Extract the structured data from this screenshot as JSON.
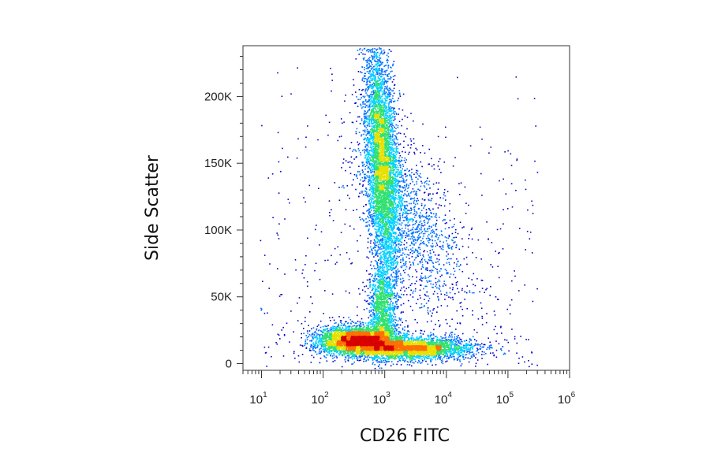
{
  "chart_data": {
    "type": "scatter",
    "subtype": "flow-cytometry density plot",
    "xlabel": "CD26 FITC",
    "ylabel": "Side Scatter",
    "x_scale": "log",
    "xlim": [
      5,
      1000000
    ],
    "ylim": [
      -5000,
      238000
    ],
    "x_ticks": [
      {
        "base": "10",
        "exp": "1",
        "value": 10
      },
      {
        "base": "10",
        "exp": "2",
        "value": 100
      },
      {
        "base": "10",
        "exp": "3",
        "value": 1000
      },
      {
        "base": "10",
        "exp": "4",
        "value": 10000
      },
      {
        "base": "10",
        "exp": "5",
        "value": 100000
      },
      {
        "base": "10",
        "exp": "6",
        "value": 1000000
      }
    ],
    "y_ticks": [
      {
        "label": "0",
        "value": 0
      },
      {
        "label": "50K",
        "value": 50000
      },
      {
        "label": "100K",
        "value": 100000
      },
      {
        "label": "150K",
        "value": 150000
      },
      {
        "label": "200K",
        "value": 200000
      }
    ],
    "grid": false,
    "legend": "none",
    "colormap": [
      "#0000c8",
      "#0070ff",
      "#00d0ff",
      "#30e070",
      "#e8e000",
      "#ff7000",
      "#d80000"
    ],
    "populations": [
      {
        "x_log_center": 2.95,
        "y_center": 150000,
        "n": 5200
      },
      {
        "x_log_center": 2.55,
        "y_center": 18000,
        "n": 3800
      },
      {
        "x_log_center": 3.4,
        "y_center": 12000,
        "n": 3200
      },
      {
        "x_log_center": 2.95,
        "y_center": 40000,
        "n": 1300
      },
      {
        "x_log_center": 3.4,
        "y_center": 110000,
        "n": 1400
      }
    ]
  }
}
